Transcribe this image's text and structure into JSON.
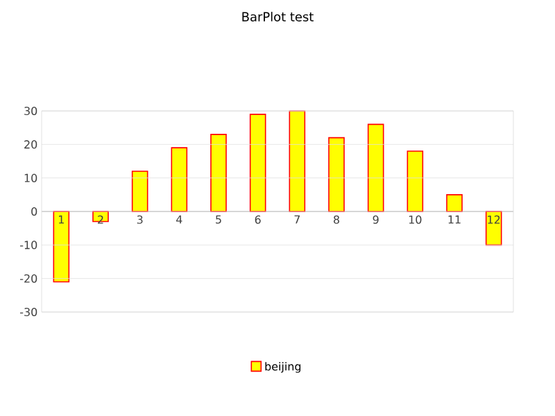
{
  "chart_data": {
    "type": "bar",
    "title": "BarPlot test",
    "categories": [
      "1",
      "2",
      "3",
      "4",
      "5",
      "6",
      "7",
      "8",
      "9",
      "10",
      "11",
      "12"
    ],
    "series": [
      {
        "name": "beijing",
        "color": "#ffff00",
        "values": [
          -21,
          -3,
          12,
          19,
          23,
          29,
          30,
          22,
          26,
          18,
          5,
          -10
        ]
      }
    ],
    "ylim": [
      -30,
      30
    ],
    "yticks": [
      -30,
      -20,
      -10,
      0,
      10,
      20,
      30
    ],
    "grid": "y",
    "legend": "bottom"
  }
}
